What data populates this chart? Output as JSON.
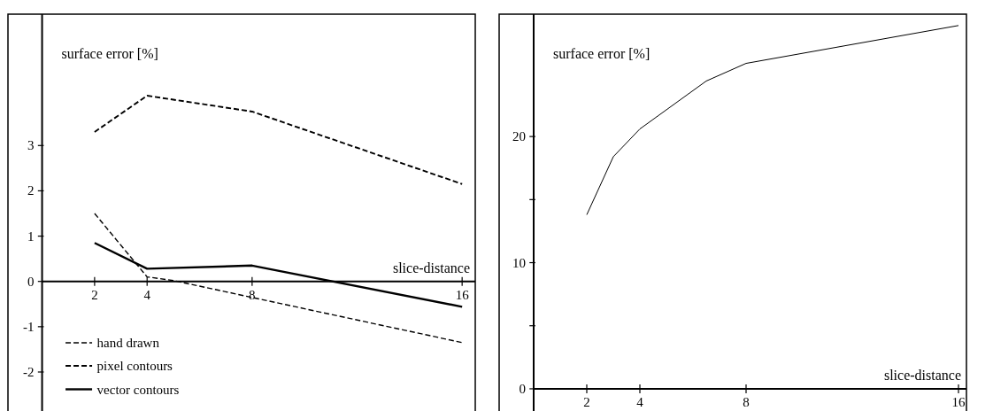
{
  "chart_data": [
    {
      "type": "line",
      "xlabel": "slice-distance",
      "ylabel": "surface error [%]",
      "xlim": [
        -1.3,
        16.5
      ],
      "ylim": [
        -2.9,
        5.9
      ],
      "xticks": [
        2,
        4,
        8,
        16
      ],
      "yticks": [
        -2,
        -1,
        0,
        1,
        2,
        3
      ],
      "grid": false,
      "legend": "bottom left",
      "marker": "none",
      "series": [
        {
          "name": "hand drawn",
          "color": "#000000",
          "line_style": "dashed",
          "x": [
            2,
            4,
            5,
            16
          ],
          "values": [
            1.5,
            0.1,
            0.02,
            -1.35
          ]
        },
        {
          "name": "pixel contours",
          "color": "#000000",
          "line_style": "dashed",
          "x": [
            2,
            4,
            8,
            16
          ],
          "values": [
            3.3,
            4.1,
            3.75,
            2.15
          ]
        },
        {
          "name": "vector contours",
          "color": "#000000",
          "line_style": "solid",
          "x": [
            2,
            4,
            8,
            16
          ],
          "values": [
            0.85,
            0.28,
            0.35,
            -0.56
          ]
        }
      ]
    },
    {
      "type": "line",
      "xlabel": "slice-distance",
      "ylabel": "surface error [%]",
      "xlim": [
        -1.3,
        16.3
      ],
      "ylim": [
        -1.9,
        29.7
      ],
      "xticks": [
        2,
        4,
        8,
        16
      ],
      "yticks": [
        0,
        {
          "value": 5,
          "label": null
        },
        10,
        {
          "value": 15,
          "label": null
        },
        20
      ],
      "legend": false,
      "marker": "none",
      "series": [
        {
          "color": "#000000",
          "line_style": "solid",
          "x": [
            2,
            3,
            4,
            6.5,
            8,
            12,
            16
          ],
          "values": [
            13.8,
            18.4,
            20.6,
            24.4,
            25.8,
            27.3,
            28.8
          ]
        }
      ]
    }
  ]
}
